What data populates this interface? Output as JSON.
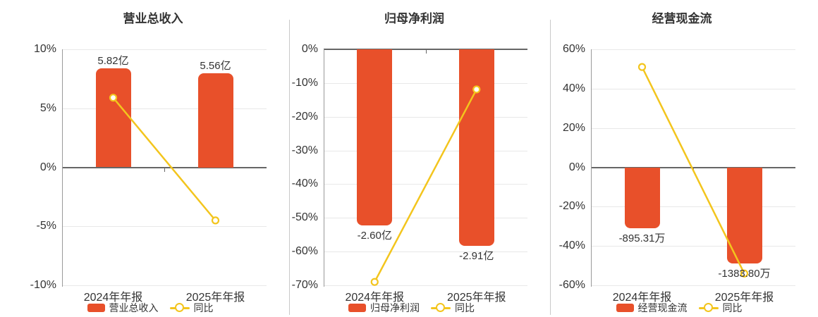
{
  "colors": {
    "bar": "#e8502a",
    "line": "#f3c51d",
    "text": "#333333",
    "grid": "#e8e8e8",
    "axis": "#999999",
    "zero_line": "#666666",
    "divider": "#c9c9c9",
    "background": "#ffffff"
  },
  "chart_data": [
    {
      "type": "bar",
      "title": "营业总收入",
      "categories": [
        "2024年年报",
        "2025年年报"
      ],
      "y_axis": {
        "min": -10,
        "max": 10,
        "tick_labels": [
          "10%",
          "5%",
          "0%",
          "-5%",
          "-10%"
        ],
        "tick_values": [
          10,
          5,
          0,
          -5,
          -10
        ],
        "grid": true
      },
      "bar_series": {
        "name": "营业总收入",
        "value_labels": [
          "5.82亿",
          "5.56亿"
        ],
        "values": [
          5.82,
          5.56
        ],
        "unit": "亿",
        "display_axis_pct": [
          8.4,
          8.0
        ]
      },
      "line_series": {
        "name": "同比",
        "values_pct": [
          5.9,
          -4.5
        ]
      },
      "legend": [
        "营业总收入",
        "同比"
      ],
      "legend_position": "bottom"
    },
    {
      "type": "bar",
      "title": "归母净利润",
      "categories": [
        "2024年年报",
        "2025年年报"
      ],
      "y_axis": {
        "min": -70,
        "max": 0,
        "tick_labels": [
          "0%",
          "-10%",
          "-20%",
          "-30%",
          "-40%",
          "-50%",
          "-60%",
          "-70%"
        ],
        "tick_values": [
          0,
          -10,
          -20,
          -30,
          -40,
          -50,
          -60,
          -70
        ],
        "grid": true
      },
      "bar_series": {
        "name": "归母净利润",
        "value_labels": [
          "-2.60亿",
          "-2.91亿"
        ],
        "values": [
          -2.6,
          -2.91
        ],
        "unit": "亿",
        "display_axis_pct": [
          -52.3,
          -58.3
        ]
      },
      "line_series": {
        "name": "同比",
        "values_pct": [
          -69.0,
          -11.9
        ]
      },
      "legend": [
        "归母净利润",
        "同比"
      ],
      "legend_position": "bottom"
    },
    {
      "type": "bar",
      "title": "经营现金流",
      "categories": [
        "2024年年报",
        "2025年年报"
      ],
      "y_axis": {
        "min": -60,
        "max": 60,
        "tick_labels": [
          "60%",
          "40%",
          "20%",
          "0%",
          "-20%",
          "-40%",
          "-60%"
        ],
        "tick_values": [
          60,
          40,
          20,
          0,
          -20,
          -40,
          -60
        ],
        "grid": true
      },
      "bar_series": {
        "name": "经营现金流",
        "value_labels": [
          "-895.31万",
          "-1383.80万"
        ],
        "values": [
          -895.31,
          -1383.8
        ],
        "unit": "万",
        "display_axis_pct": [
          -31.0,
          -49.0
        ]
      },
      "line_series": {
        "name": "同比",
        "values_pct": [
          51.0,
          -54.0
        ]
      },
      "legend": [
        "经营现金流",
        "同比"
      ],
      "legend_position": "bottom"
    }
  ]
}
